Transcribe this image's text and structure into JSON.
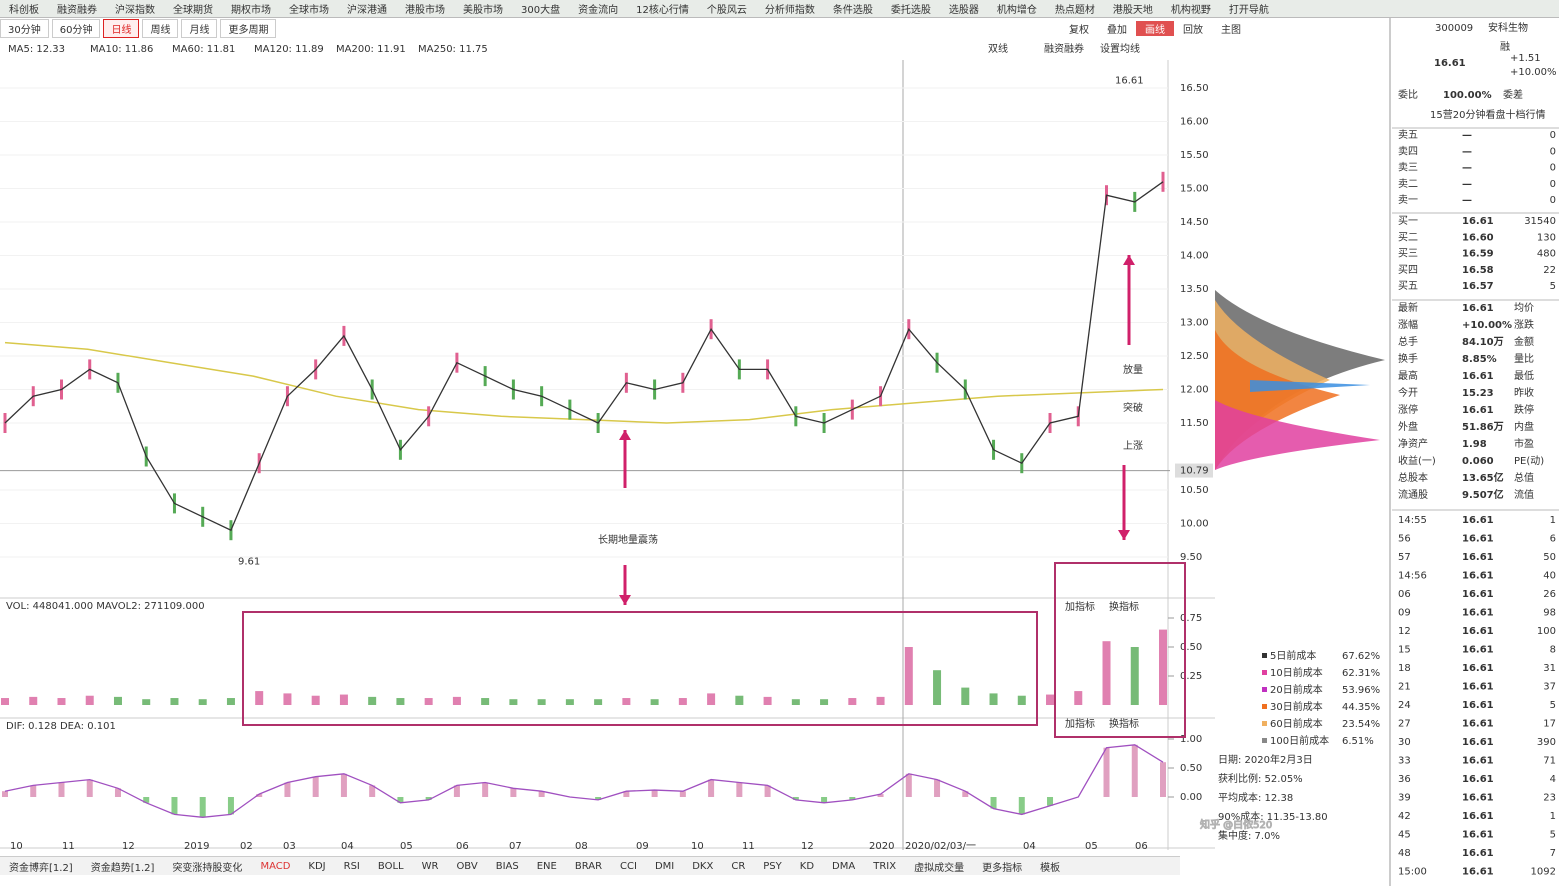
{
  "menu": [
    "科创板",
    "融资融券",
    "沪深指数",
    "全球期货",
    "期权市场",
    "全球市场",
    "沪深港通",
    "港股市场",
    "美股市场",
    "300大盘",
    "资金流向",
    "12核心行情",
    "个股风云",
    "分析师指数",
    "条件选股",
    "委托选股",
    "选股器",
    "机构增仓",
    "热点题材",
    "港股天地",
    "机构视野",
    "打开导航"
  ],
  "periods": [
    "30分钟",
    "60分钟",
    "日线",
    "周线",
    "月线",
    "更多周期"
  ],
  "tools": [
    "复权",
    "叠加",
    "画线",
    "回放",
    "主图"
  ],
  "ma_legend": [
    "MA5: 12.33",
    "MA10: 11.86",
    "MA60: 11.81",
    "MA120: 11.89",
    "MA200: 11.91",
    "MA250: 11.75"
  ],
  "chart_tools": [
    "双线",
    "融资融券",
    "设置均线"
  ],
  "price_axis": {
    "ticks": [
      {
        "value": 16.5,
        "label": "16.50"
      },
      {
        "value": 16,
        "label": "16.00"
      },
      {
        "value": 15.5,
        "label": "15.50"
      },
      {
        "value": 15,
        "label": "15.00"
      },
      {
        "value": 14.5,
        "label": "14.50"
      },
      {
        "value": 14,
        "label": "14.00"
      },
      {
        "value": 13.5,
        "label": "13.50"
      },
      {
        "value": 13,
        "label": "13.00"
      },
      {
        "value": 12.5,
        "label": "12.50"
      },
      {
        "value": 12,
        "label": "12.00"
      },
      {
        "value": 11.5,
        "label": "11.50"
      },
      {
        "value": 10.5,
        "label": "10.50"
      },
      {
        "value": 10,
        "label": "10.00"
      },
      {
        "value": 9.5,
        "label": "9.50"
      }
    ],
    "current": 10.79
  },
  "price": {
    "high": 16.61,
    "low": 9.61,
    "values": [
      11.5,
      11.9,
      12.0,
      12.3,
      12.1,
      11.0,
      10.3,
      10.1,
      9.9,
      10.9,
      11.9,
      12.3,
      12.8,
      12.0,
      11.1,
      11.6,
      12.4,
      12.2,
      12.0,
      11.9,
      11.7,
      11.5,
      12.1,
      12.0,
      12.1,
      12.9,
      12.3,
      12.3,
      11.6,
      11.5,
      11.7,
      11.9,
      12.9,
      12.4,
      12.0,
      11.1,
      10.9,
      11.5,
      11.6,
      14.9,
      14.8,
      15.1
    ]
  },
  "ma250": {
    "values": [
      12.7,
      12.6,
      12.4,
      12.2,
      11.9,
      11.7,
      11.6,
      11.55,
      11.5,
      11.55,
      11.7,
      11.8,
      11.9,
      11.95,
      12.0
    ]
  },
  "volume": {
    "label": "VOL: 448041.000  MAVOL2: 271109.000",
    "ticks": [
      {
        "value": 0.75,
        "label": "0.75"
      },
      {
        "value": 0.5,
        "label": "0.50"
      },
      {
        "value": 0.25,
        "label": "0.25"
      }
    ],
    "values": [
      0.06,
      0.07,
      0.06,
      0.08,
      0.07,
      0.05,
      0.06,
      0.05,
      0.06,
      0.12,
      0.1,
      0.08,
      0.09,
      0.07,
      0.06,
      0.06,
      0.07,
      0.06,
      0.05,
      0.05,
      0.05,
      0.05,
      0.06,
      0.05,
      0.06,
      0.1,
      0.08,
      0.07,
      0.05,
      0.05,
      0.06,
      0.07,
      0.5,
      0.3,
      0.15,
      0.1,
      0.08,
      0.09,
      0.12,
      0.55,
      0.5,
      0.65
    ]
  },
  "macd": {
    "label": "DIF: 0.128  DEA: 0.101",
    "ticks": [
      {
        "value": 1,
        "label": "1.00"
      },
      {
        "value": 0.5,
        "label": "0.50"
      },
      {
        "value": 0,
        "label": "0.00"
      }
    ],
    "values": [
      0.1,
      0.2,
      0.25,
      0.3,
      0.15,
      -0.1,
      -0.3,
      -0.35,
      -0.3,
      0.05,
      0.25,
      0.35,
      0.4,
      0.2,
      -0.1,
      -0.05,
      0.2,
      0.25,
      0.15,
      0.1,
      0.0,
      -0.05,
      0.1,
      0.12,
      0.1,
      0.3,
      0.25,
      0.2,
      -0.05,
      -0.1,
      -0.05,
      0.05,
      0.4,
      0.3,
      0.1,
      -0.2,
      -0.3,
      -0.15,
      0.0,
      0.85,
      0.9,
      0.6
    ]
  },
  "panel_buttons": [
    "加指标",
    "换指标"
  ],
  "x_axis": [
    "10",
    "11",
    "12",
    "2019",
    "02",
    "03",
    "04",
    "05",
    "06",
    "07",
    "08",
    "09",
    "10",
    "11",
    "12",
    "2020",
    "2020/02/03/一",
    "04",
    "05",
    "06"
  ],
  "annotations": {
    "left": "长期地量震荡",
    "right": [
      "放量",
      "突破",
      "上涨"
    ]
  },
  "chip": {
    "legend": [
      [
        "5日前成本",
        "67.62%"
      ],
      [
        "10日前成本",
        "62.31%"
      ],
      [
        "20日前成本",
        "53.96%"
      ],
      [
        "30日前成本",
        "44.35%"
      ],
      [
        "60日前成本",
        "23.54%"
      ],
      [
        "100日前成本",
        "6.51%"
      ]
    ],
    "info": [
      "日期: 2020年2月3日",
      "获利比例: 52.05%",
      "平均成本: 12.38",
      "90%成本: 11.35-13.80",
      "集中度: 7.0%"
    ]
  },
  "quote": {
    "code": "300009",
    "name": "安科生物",
    "price": "16.61",
    "change": "+1.51",
    "change_pct": "+10.00%",
    "tag": "融",
    "ratio": [
      "委比",
      "100.00%",
      "委差"
    ],
    "link": "15营20分钟看盘十档行情",
    "asks": [
      [
        "卖五",
        "—",
        "0"
      ],
      [
        "卖四",
        "—",
        "0"
      ],
      [
        "卖三",
        "—",
        "0"
      ],
      [
        "卖二",
        "—",
        "0"
      ],
      [
        "卖一",
        "—",
        "0"
      ]
    ],
    "bids": [
      [
        "买一",
        "16.61",
        "31540"
      ],
      [
        "买二",
        "16.60",
        "130"
      ],
      [
        "买三",
        "16.59",
        "480"
      ],
      [
        "买四",
        "16.58",
        "22"
      ],
      [
        "买五",
        "16.57",
        "5"
      ]
    ],
    "stats": [
      [
        "最新",
        "16.61",
        "均价"
      ],
      [
        "涨幅",
        "+10.00%",
        "涨跌"
      ],
      [
        "总手",
        "84.10万",
        "金额"
      ],
      [
        "换手",
        "8.85%",
        "量比"
      ],
      [
        "最高",
        "16.61",
        "最低"
      ],
      [
        "今开",
        "15.23",
        "昨收"
      ],
      [
        "涨停",
        "16.61",
        "跌停"
      ],
      [
        "外盘",
        "51.86万",
        "内盘"
      ],
      [
        "净资产",
        "1.98",
        "市盈"
      ],
      [
        "收益(一)",
        "0.060",
        "PE(动)"
      ],
      [
        "总股本",
        "13.65亿",
        "总值"
      ],
      [
        "流通股",
        "9.507亿",
        "流值"
      ]
    ],
    "ticks": [
      [
        "14:55",
        "16.61",
        "1"
      ],
      [
        "56",
        "16.61",
        "6"
      ],
      [
        "57",
        "16.61",
        "50"
      ],
      [
        "14:56",
        "16.61",
        "40"
      ],
      [
        "06",
        "16.61",
        "26"
      ],
      [
        "09",
        "16.61",
        "98"
      ],
      [
        "12",
        "16.61",
        "100"
      ],
      [
        "15",
        "16.61",
        "8"
      ],
      [
        "18",
        "16.61",
        "31"
      ],
      [
        "21",
        "16.61",
        "37"
      ],
      [
        "24",
        "16.61",
        "5"
      ],
      [
        "27",
        "16.61",
        "17"
      ],
      [
        "30",
        "16.61",
        "390"
      ],
      [
        "33",
        "16.61",
        "71"
      ],
      [
        "36",
        "16.61",
        "4"
      ],
      [
        "39",
        "16.61",
        "23"
      ],
      [
        "42",
        "16.61",
        "1"
      ],
      [
        "45",
        "16.61",
        "5"
      ],
      [
        "48",
        "16.61",
        "7"
      ],
      [
        "15:00",
        "16.61",
        "1092"
      ]
    ]
  },
  "bottom_tabs": [
    "资金博弈[1.2]",
    "资金趋势[1.2]",
    "突变涨持股变化",
    "MACD",
    "KDJ",
    "RSI",
    "BOLL",
    "WR",
    "OBV",
    "BIAS",
    "ENE",
    "BRAR",
    "CCI",
    "DMI",
    "DKX",
    "CR",
    "PSY",
    "KD",
    "DMA",
    "TRIX",
    "虚拟成交量",
    "更多指标",
    "模板"
  ],
  "watermark": "知乎 @白侬520"
}
